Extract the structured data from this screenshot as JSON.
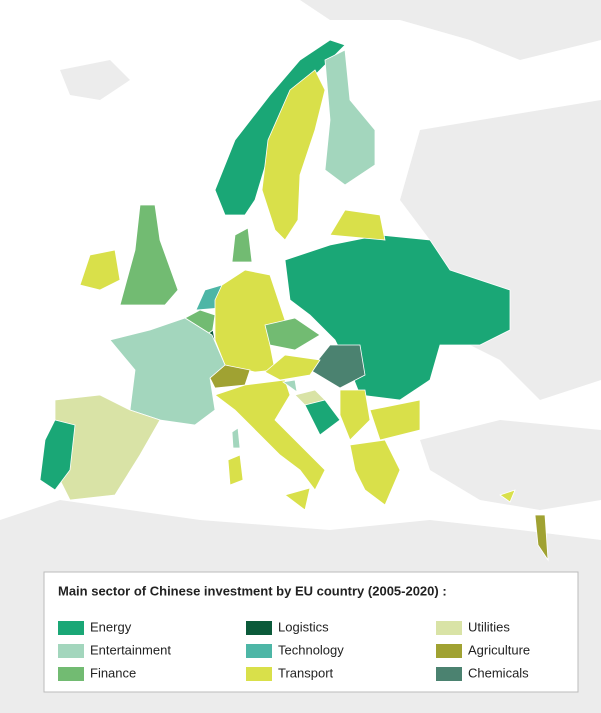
{
  "legend": {
    "title": "Main sector of Chinese investment by EU country (2005-2020) :",
    "items": [
      {
        "label": "Energy",
        "color": "#1aa776"
      },
      {
        "label": "Entertainment",
        "color": "#a3d6bd"
      },
      {
        "label": "Finance",
        "color": "#72bb72"
      },
      {
        "label": "Logistics",
        "color": "#0b5a3a"
      },
      {
        "label": "Technology",
        "color": "#4db6a6"
      },
      {
        "label": "Transport",
        "color": "#d9e04a"
      },
      {
        "label": "Utilities",
        "color": "#d9e3a6"
      },
      {
        "label": "Agriculture",
        "color": "#a0a232"
      },
      {
        "label": "Chemicals",
        "color": "#4b8270"
      }
    ]
  }
}
